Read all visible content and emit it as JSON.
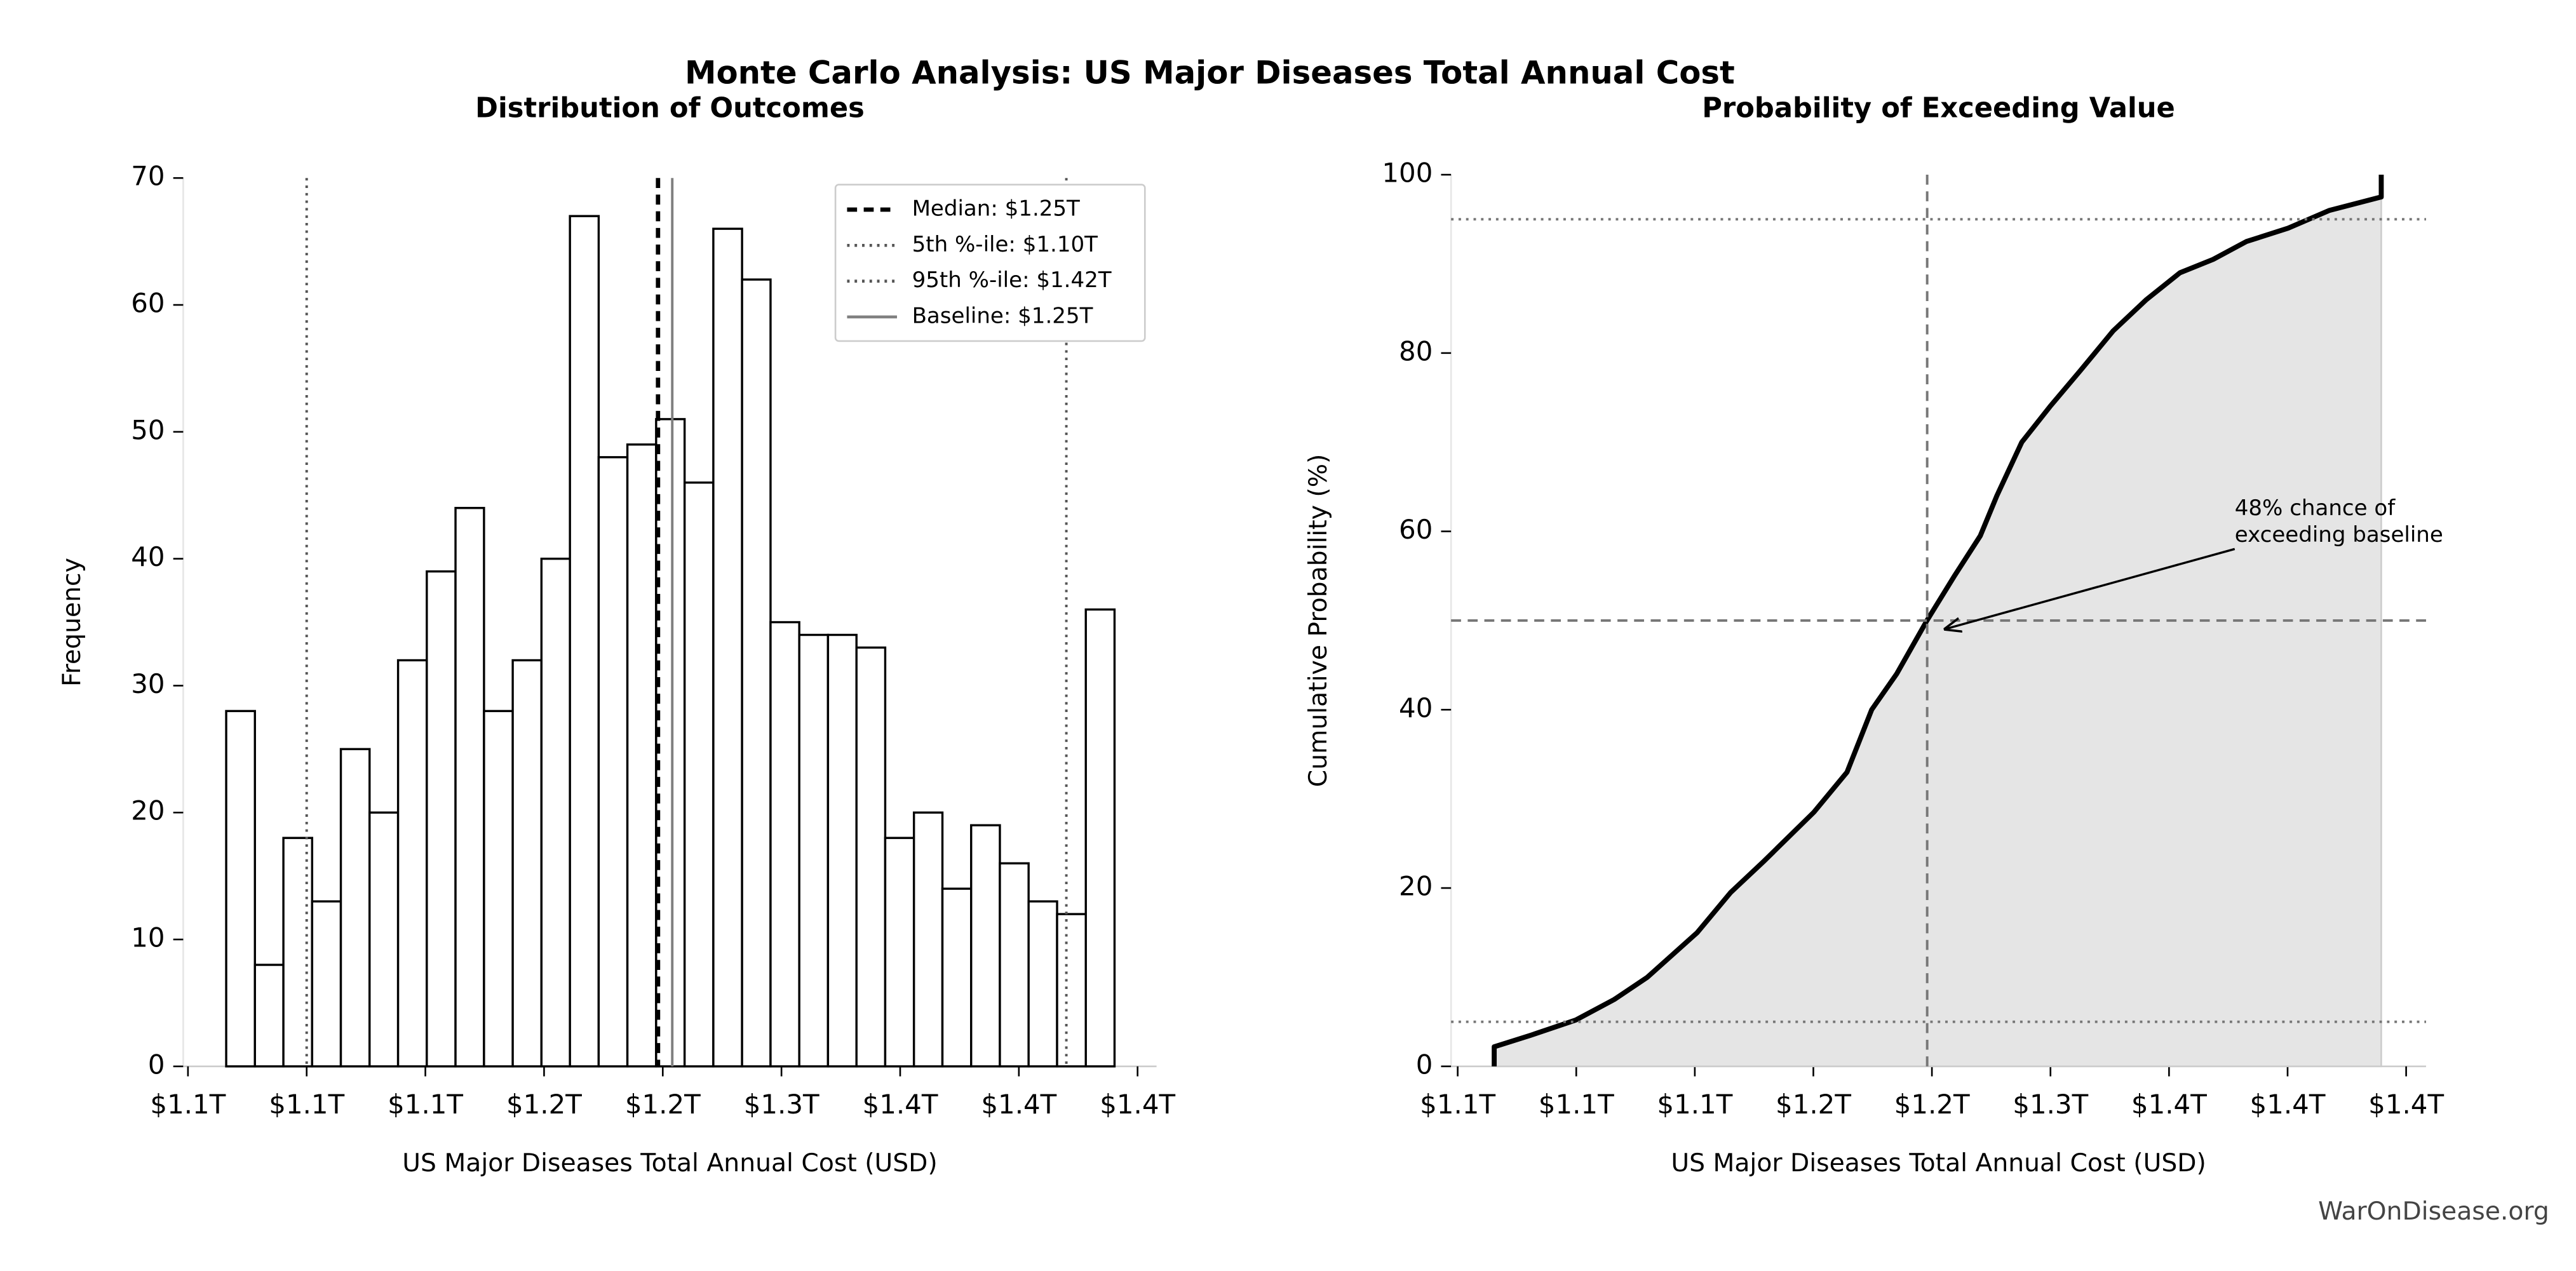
{
  "figure": {
    "title": "Monte Carlo Analysis: US Major Diseases Total Annual Cost",
    "watermark": "WarOnDisease.org"
  },
  "chart_data": [
    {
      "type": "histogram",
      "title": "Distribution of Outcomes",
      "xlabel": "US Major Diseases Total Annual Cost (USD)",
      "ylabel": "Frequency",
      "bins": [
        1.0661,
        1.0782,
        1.0902,
        1.1023,
        1.1144,
        1.1265,
        1.1385,
        1.1506,
        1.1627,
        1.1747,
        1.1868,
        1.1989,
        1.2109,
        1.223,
        1.2351,
        1.2472,
        1.2592,
        1.2713,
        1.2834,
        1.2954,
        1.3075,
        1.3196,
        1.3316,
        1.3437,
        1.3558,
        1.3678,
        1.3799,
        1.392,
        1.4041,
        1.4161,
        1.4282,
        1.4403
      ],
      "values": [
        28,
        8,
        18,
        13,
        25,
        20,
        32,
        39,
        44,
        28,
        32,
        40,
        67,
        48,
        49,
        51,
        46,
        66,
        62,
        35,
        34,
        34,
        33,
        18,
        20,
        14,
        19,
        16,
        13,
        12,
        36
      ],
      "color": "#ffffff",
      "edgecolor": "#000000",
      "xlim": [
        1.048,
        1.458
      ],
      "ylim": [
        0,
        70
      ],
      "xticks": [
        {
          "value": 1.05,
          "label": "$1.1T"
        },
        {
          "value": 1.1,
          "label": "$1.1T"
        },
        {
          "value": 1.15,
          "label": "$1.1T"
        },
        {
          "value": 1.2,
          "label": "$1.2T"
        },
        {
          "value": 1.25,
          "label": "$1.2T"
        },
        {
          "value": 1.3,
          "label": "$1.3T"
        },
        {
          "value": 1.35,
          "label": "$1.4T"
        },
        {
          "value": 1.4,
          "label": "$1.4T"
        },
        {
          "value": 1.45,
          "label": "$1.4T"
        }
      ],
      "yticks": [
        0,
        10,
        20,
        30,
        40,
        50,
        60,
        70
      ],
      "ref_lines": [
        {
          "label": "Median: $1.25T",
          "value": 1.248,
          "orientation": "v",
          "style": "dashed",
          "color": "#000000"
        },
        {
          "label": "5th %-ile: $1.10T",
          "value": 1.1,
          "orientation": "v",
          "style": "dotted",
          "color": "#555555"
        },
        {
          "label": "95th %-ile: $1.42T",
          "value": 1.42,
          "orientation": "v",
          "style": "dotted",
          "color": "#555555"
        },
        {
          "label": "Baseline: $1.25T",
          "value": 1.254,
          "orientation": "v",
          "style": "solid",
          "color": "#808080"
        }
      ],
      "legend": "upper right"
    },
    {
      "type": "line",
      "title": "Probability of Exceeding Value",
      "xlabel": "US Major Diseases Total Annual Cost (USD)",
      "ylabel": "Cumulative Probability (%)",
      "x": [
        1.0654,
        1.0654,
        1.0809,
        1.0998,
        1.116,
        1.13,
        1.151,
        1.1651,
        1.1791,
        1.2002,
        1.2142,
        1.2246,
        1.2351,
        1.2479,
        1.2595,
        1.2704,
        1.2774,
        1.2879,
        1.2998,
        1.3125,
        1.3265,
        1.3405,
        1.3546,
        1.3686,
        1.3826,
        1.4002,
        1.4177,
        1.4395,
        1.4395
      ],
      "values": [
        0,
        2.2,
        3.5,
        5.2,
        7.5,
        10,
        15,
        19.5,
        23,
        28.5,
        33,
        40,
        44,
        50,
        55,
        59.5,
        64,
        70,
        74,
        78,
        82.5,
        86,
        89,
        90.5,
        92.5,
        94,
        96,
        97.5,
        100
      ],
      "color": "#000000",
      "fill_color": "#e5e5e5",
      "xlim": [
        1.0472,
        1.4584
      ],
      "ylim": [
        0,
        100
      ],
      "xticks": [
        {
          "value": 1.05,
          "label": "$1.1T"
        },
        {
          "value": 1.1,
          "label": "$1.1T"
        },
        {
          "value": 1.15,
          "label": "$1.1T"
        },
        {
          "value": 1.2,
          "label": "$1.2T"
        },
        {
          "value": 1.25,
          "label": "$1.2T"
        },
        {
          "value": 1.3,
          "label": "$1.3T"
        },
        {
          "value": 1.35,
          "label": "$1.4T"
        },
        {
          "value": 1.4,
          "label": "$1.4T"
        },
        {
          "value": 1.45,
          "label": "$1.4T"
        }
      ],
      "yticks": [
        0,
        20,
        40,
        60,
        80,
        100
      ],
      "ref_lines": [
        {
          "value": 5,
          "orientation": "h",
          "style": "dotted",
          "color": "#777777"
        },
        {
          "value": 50,
          "orientation": "h",
          "style": "dashed",
          "color": "#777777"
        },
        {
          "value": 95,
          "orientation": "h",
          "style": "dotted",
          "color": "#777777"
        },
        {
          "value": 1.248,
          "orientation": "v",
          "style": "dashed",
          "color": "#777777"
        }
      ],
      "annotation": {
        "text": [
          "48% chance of",
          "exceeding baseline"
        ],
        "x": 1.3777,
        "y": 62.5,
        "xy": [
          1.255,
          49
        ]
      }
    }
  ]
}
